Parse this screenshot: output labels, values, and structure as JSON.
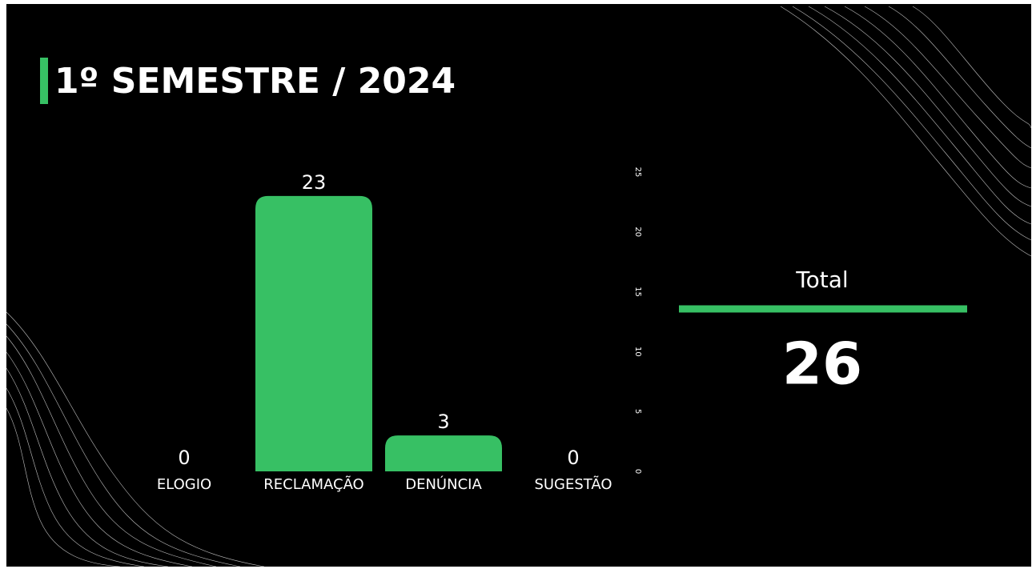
{
  "chart_data": {
    "type": "bar",
    "title": "1º SEMESTRE / 2024",
    "categories": [
      "ELOGIO",
      "RECLAMAÇÃO",
      "DENÚNCIA",
      "SUGESTÃO"
    ],
    "values": [
      0,
      23,
      3,
      0
    ],
    "color": "#37c064",
    "ylim": [
      0,
      25
    ],
    "yticks": [
      0,
      5,
      10,
      15,
      20,
      25
    ],
    "grid": false
  },
  "total": {
    "label": "Total",
    "value": "26"
  }
}
